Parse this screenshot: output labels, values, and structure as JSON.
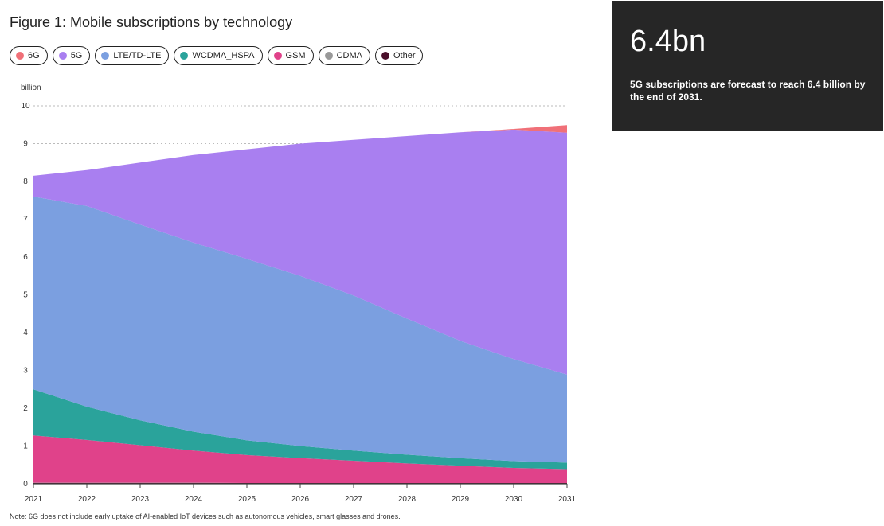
{
  "title": "Figure 1: Mobile subscriptions by technology",
  "unit_label": "billion",
  "note": "Note: 6G does not include early uptake of AI-enabled IoT devices such as autonomous vehicles, smart glasses and drones.",
  "callout": {
    "number": "6.4bn",
    "text": "5G subscriptions are forecast to reach 6.4 billion by the end of 2031."
  },
  "legend": [
    {
      "label": "6G",
      "color": "#f07078"
    },
    {
      "label": "5G",
      "color": "#a97ff0"
    },
    {
      "label": "LTE/TD-LTE",
      "color": "#7b9fe0"
    },
    {
      "label": "WCDMA_HSPA",
      "color": "#2aa39b"
    },
    {
      "label": "GSM",
      "color": "#e0428a"
    },
    {
      "label": "CDMA",
      "color": "#999999"
    },
    {
      "label": "Other",
      "color": "#4a0e2a"
    }
  ],
  "chart_data": {
    "type": "area",
    "stacked": true,
    "x": [
      2021,
      2022,
      2023,
      2024,
      2025,
      2026,
      2027,
      2028,
      2029,
      2030,
      2031
    ],
    "xticks": [
      "2021",
      "2022",
      "2023",
      "2024",
      "2025",
      "2026",
      "2027",
      "2028",
      "2029",
      "2030",
      "2031"
    ],
    "yticks": [
      "0",
      "1",
      "2",
      "3",
      "4",
      "5",
      "6",
      "7",
      "8",
      "9",
      "10"
    ],
    "ylim": [
      0,
      10
    ],
    "ylabel": "billion",
    "grid": true,
    "series": [
      {
        "name": "Other",
        "color": "#4a0e2a",
        "values": [
          0.02,
          0.02,
          0.02,
          0.02,
          0.02,
          0.02,
          0.02,
          0.02,
          0.02,
          0.02,
          0.02
        ]
      },
      {
        "name": "CDMA",
        "color": "#999999",
        "values": [
          0.01,
          0.01,
          0.01,
          0.01,
          0.0,
          0.0,
          0.0,
          0.0,
          0.0,
          0.0,
          0.0
        ]
      },
      {
        "name": "GSM",
        "color": "#e0428a",
        "values": [
          1.25,
          1.13,
          0.99,
          0.85,
          0.74,
          0.66,
          0.59,
          0.52,
          0.46,
          0.4,
          0.37
        ]
      },
      {
        "name": "WCDMA_HSPA",
        "color": "#2aa39b",
        "values": [
          1.22,
          0.88,
          0.66,
          0.5,
          0.39,
          0.32,
          0.27,
          0.23,
          0.2,
          0.18,
          0.17
        ]
      },
      {
        "name": "LTE/TD-LTE",
        "color": "#7b9fe0",
        "values": [
          5.1,
          5.31,
          5.18,
          5.0,
          4.8,
          4.5,
          4.1,
          3.6,
          3.1,
          2.7,
          2.33
        ]
      },
      {
        "name": "5G",
        "color": "#a97ff0",
        "values": [
          0.55,
          0.95,
          1.64,
          2.32,
          2.9,
          3.5,
          4.12,
          4.83,
          5.52,
          6.07,
          6.4
        ]
      },
      {
        "name": "6G",
        "color": "#f07078",
        "values": [
          0,
          0,
          0,
          0,
          0,
          0,
          0,
          0,
          0,
          0.02,
          0.2
        ]
      }
    ]
  }
}
